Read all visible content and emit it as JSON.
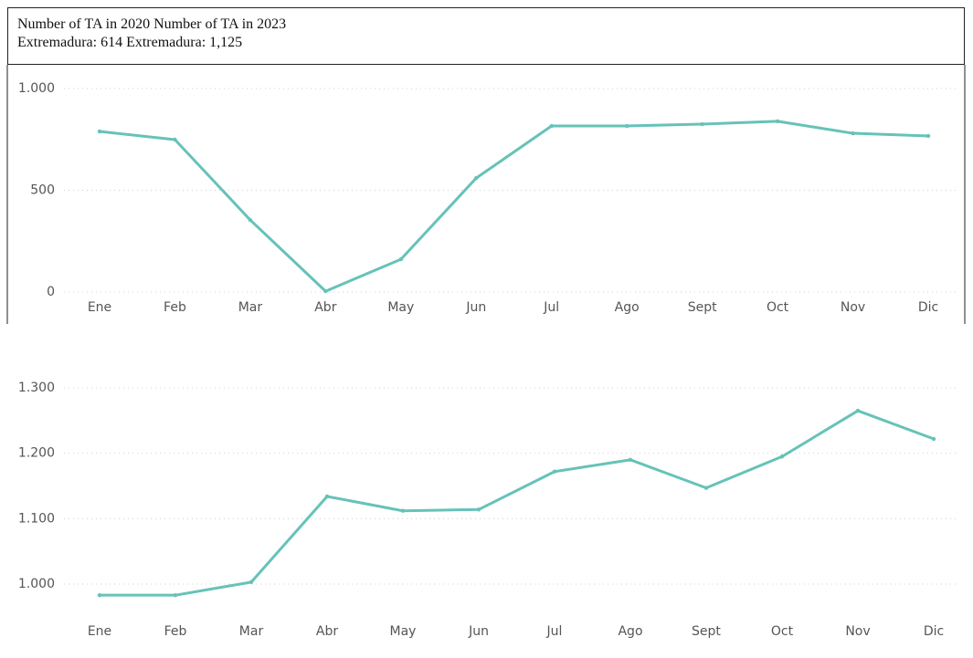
{
  "header": {
    "line1": "Number of TA in 2020 Number of TA in 2023",
    "line2": "Extremadura: 614 Extremadura: 1,125"
  },
  "chart_data": [
    {
      "type": "line",
      "categories": [
        "Ene",
        "Feb",
        "Mar",
        "Abr",
        "May",
        "Jun",
        "Jul",
        "Ago",
        "Sept",
        "Oct",
        "Nov",
        "Dic"
      ],
      "values": [
        789,
        749,
        354,
        4,
        161,
        560,
        816,
        816,
        825,
        839,
        780,
        767
      ],
      "color": "#66c2b9",
      "ylim": [
        0,
        1000
      ],
      "yticks": [
        0,
        500,
        {
          "value": 1000,
          "label": "1.000"
        }
      ],
      "grid": true
    },
    {
      "type": "line",
      "categories": [
        "Ene",
        "Feb",
        "Mar",
        "Abr",
        "May",
        "Jun",
        "Jul",
        "Ago",
        "Sept",
        "Oct",
        "Nov",
        "Dic"
      ],
      "values": [
        983,
        983,
        1003,
        1134,
        1112,
        1114,
        1172,
        1190,
        1147,
        1195,
        1265,
        1222
      ],
      "color": "#66c2b9",
      "ylim": [
        970,
        1300
      ],
      "yticks": [
        {
          "value": 1000,
          "label": "1.000"
        },
        {
          "value": 1100,
          "label": "1.100"
        },
        {
          "value": 1200,
          "label": "1.200"
        },
        {
          "value": 1300,
          "label": "1.300"
        }
      ],
      "grid": true
    }
  ]
}
